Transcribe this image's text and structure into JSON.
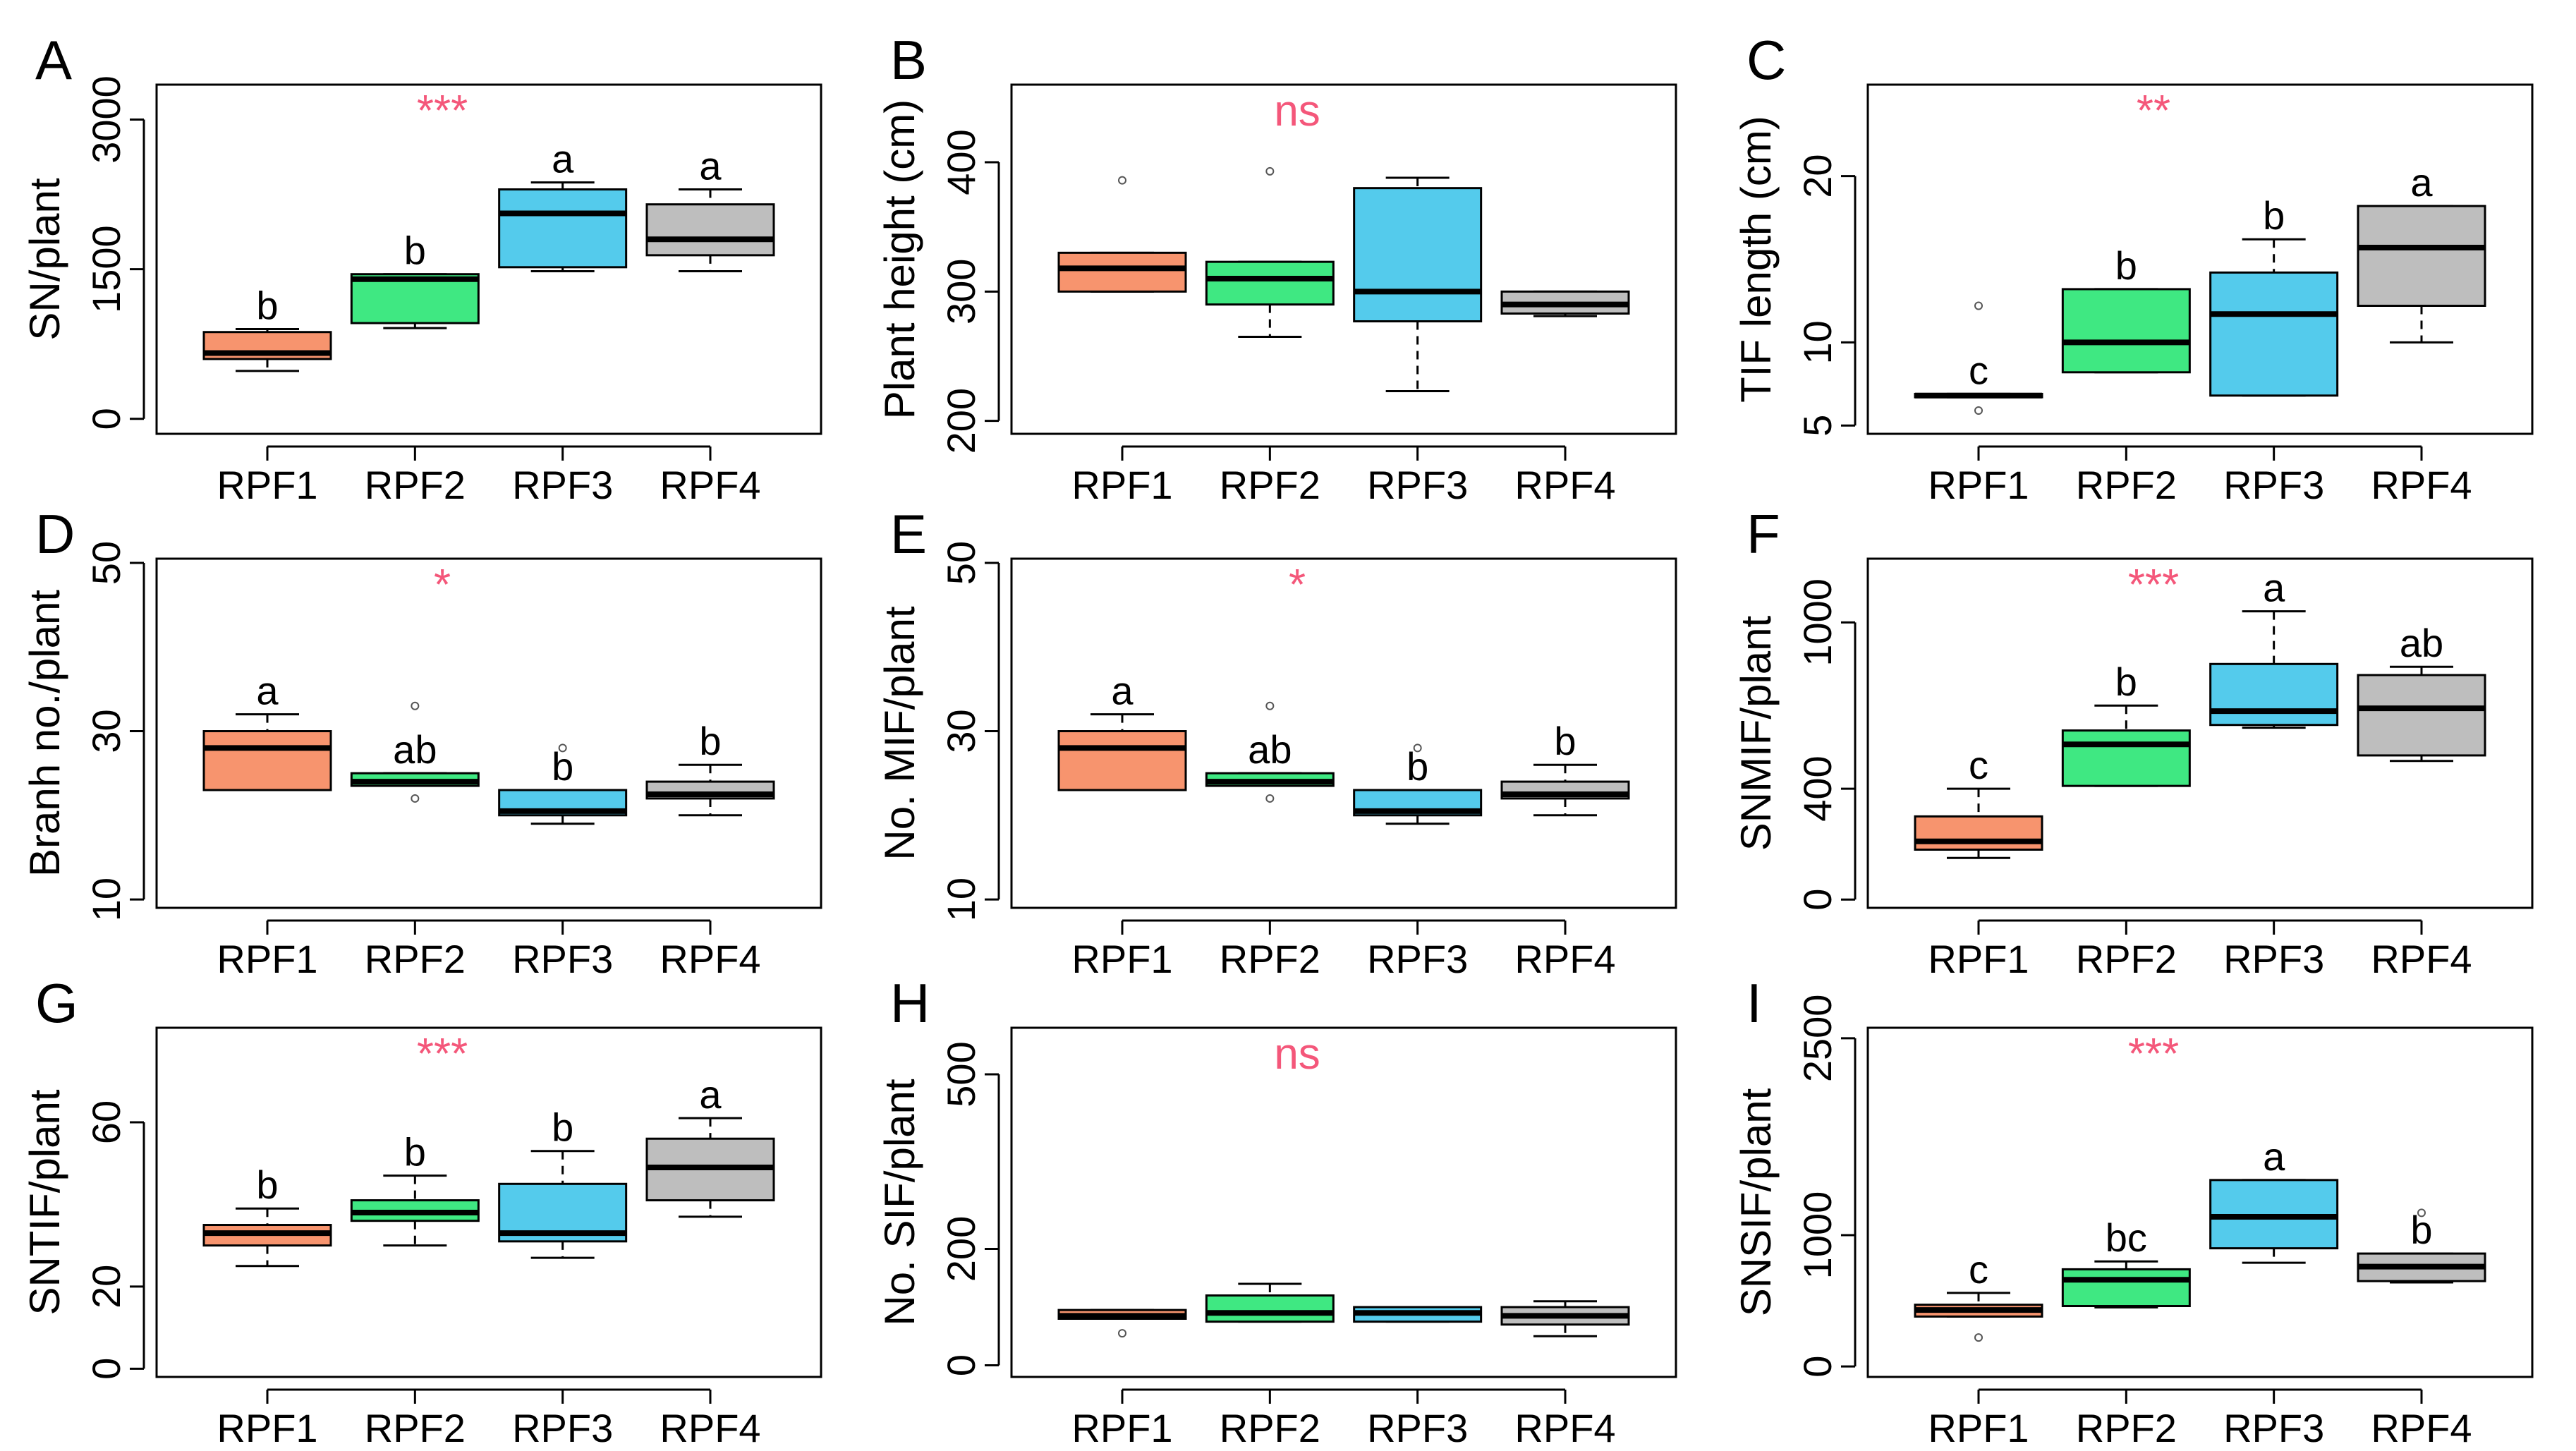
{
  "categories": [
    "RPF1",
    "RPF2",
    "RPF3",
    "RPF4"
  ],
  "colors": {
    "RPF1": "#f7946e",
    "RPF2": "#3fe882",
    "RPF3": "#54cbec",
    "RPF4": "#bebebe",
    "significance": "#f4577a",
    "axis": "#000000"
  },
  "chart_data": [
    {
      "panel": "A",
      "type": "boxplot",
      "ylabel": "SN/plant",
      "ylim": [
        -150,
        3350
      ],
      "yticks": [
        0,
        1500,
        3000
      ],
      "significance": "***",
      "boxes": [
        {
          "category": "RPF1",
          "min": 480,
          "q1": 600,
          "median": 660,
          "q3": 870,
          "max": 900,
          "outliers": [],
          "letter": "b"
        },
        {
          "category": "RPF2",
          "min": 910,
          "q1": 960,
          "median": 1400,
          "q3": 1450,
          "max": 1450,
          "outliers": [],
          "letter": "b"
        },
        {
          "category": "RPF3",
          "min": 1480,
          "q1": 1520,
          "median": 2060,
          "q3": 2300,
          "max": 2370,
          "outliers": [],
          "letter": "a"
        },
        {
          "category": "RPF4",
          "min": 1480,
          "q1": 1640,
          "median": 1800,
          "q3": 2150,
          "max": 2300,
          "outliers": [],
          "letter": "a"
        }
      ]
    },
    {
      "panel": "B",
      "type": "boxplot",
      "ylabel": "Plant height (cm)",
      "ylim": [
        190,
        460
      ],
      "yticks": [
        200,
        300,
        400
      ],
      "significance": "ns",
      "boxes": [
        {
          "category": "RPF1",
          "min": 300,
          "q1": 300,
          "median": 318,
          "q3": 330,
          "max": 330,
          "outliers": [
            386
          ],
          "letter": ""
        },
        {
          "category": "RPF2",
          "min": 265,
          "q1": 290,
          "median": 310,
          "q3": 323,
          "max": 323,
          "outliers": [
            393
          ],
          "letter": ""
        },
        {
          "category": "RPF3",
          "min": 223,
          "q1": 277,
          "median": 300,
          "q3": 380,
          "max": 388,
          "outliers": [],
          "letter": ""
        },
        {
          "category": "RPF4",
          "min": 281,
          "q1": 283,
          "median": 290,
          "q3": 300,
          "max": 300,
          "outliers": [],
          "letter": ""
        }
      ]
    },
    {
      "panel": "C",
      "type": "boxplot",
      "ylabel": "TIF length (cm)",
      "ylim": [
        4.5,
        25.5
      ],
      "yticks": [
        5,
        10,
        20
      ],
      "significance": "**",
      "boxes": [
        {
          "category": "RPF1",
          "min": 6.7,
          "q1": 6.7,
          "median": 6.8,
          "q3": 6.9,
          "max": 6.9,
          "outliers": [
            5.9,
            12.2
          ],
          "letter": "c"
        },
        {
          "category": "RPF2",
          "min": 8.2,
          "q1": 8.2,
          "median": 10.0,
          "q3": 13.2,
          "max": 13.2,
          "outliers": [],
          "letter": "b"
        },
        {
          "category": "RPF3",
          "min": 6.8,
          "q1": 6.8,
          "median": 11.7,
          "q3": 14.2,
          "max": 16.2,
          "outliers": [],
          "letter": "b"
        },
        {
          "category": "RPF4",
          "min": 10.0,
          "q1": 12.2,
          "median": 15.7,
          "q3": 18.2,
          "max": 18.2,
          "outliers": [],
          "letter": "a"
        }
      ]
    },
    {
      "panel": "D",
      "type": "boxplot",
      "ylabel": "Branh no./plant",
      "ylim": [
        9,
        50.5
      ],
      "yticks": [
        10,
        30,
        50
      ],
      "significance": "*",
      "boxes": [
        {
          "category": "RPF1",
          "min": 23,
          "q1": 23,
          "median": 28,
          "q3": 30,
          "max": 32,
          "outliers": [],
          "letter": "a"
        },
        {
          "category": "RPF2",
          "min": 23.5,
          "q1": 23.5,
          "median": 24,
          "q3": 25,
          "max": 25,
          "outliers": [
            22,
            33
          ],
          "letter": "ab"
        },
        {
          "category": "RPF3",
          "min": 19,
          "q1": 20,
          "median": 20.5,
          "q3": 23,
          "max": 23,
          "outliers": [
            28
          ],
          "letter": "b"
        },
        {
          "category": "RPF4",
          "min": 20,
          "q1": 22,
          "median": 22.5,
          "q3": 24,
          "max": 26,
          "outliers": [],
          "letter": "b"
        }
      ]
    },
    {
      "panel": "E",
      "type": "boxplot",
      "ylabel": "No. MIF/plant",
      "ylim": [
        9,
        50.5
      ],
      "yticks": [
        10,
        30,
        50
      ],
      "significance": "*",
      "boxes": [
        {
          "category": "RPF1",
          "min": 23,
          "q1": 23,
          "median": 28,
          "q3": 30,
          "max": 32,
          "outliers": [],
          "letter": "a"
        },
        {
          "category": "RPF2",
          "min": 23.5,
          "q1": 23.5,
          "median": 24,
          "q3": 25,
          "max": 25,
          "outliers": [
            22,
            33
          ],
          "letter": "ab"
        },
        {
          "category": "RPF3",
          "min": 19,
          "q1": 20,
          "median": 20.5,
          "q3": 23,
          "max": 23,
          "outliers": [
            28
          ],
          "letter": "b"
        },
        {
          "category": "RPF4",
          "min": 20,
          "q1": 22,
          "median": 22.5,
          "q3": 24,
          "max": 26,
          "outliers": [],
          "letter": "b"
        }
      ]
    },
    {
      "panel": "F",
      "type": "boxplot",
      "ylabel": "SNMIF/plant",
      "ylim": [
        -30,
        1230
      ],
      "yticks": [
        0,
        400,
        1000
      ],
      "significance": "***",
      "boxes": [
        {
          "category": "RPF1",
          "min": 150,
          "q1": 180,
          "median": 210,
          "q3": 300,
          "max": 400,
          "outliers": [],
          "letter": "c"
        },
        {
          "category": "RPF2",
          "min": 410,
          "q1": 410,
          "median": 560,
          "q3": 610,
          "max": 700,
          "outliers": [],
          "letter": "b"
        },
        {
          "category": "RPF3",
          "min": 620,
          "q1": 630,
          "median": 680,
          "q3": 850,
          "max": 1040,
          "outliers": [],
          "letter": "a"
        },
        {
          "category": "RPF4",
          "min": 500,
          "q1": 520,
          "median": 690,
          "q3": 810,
          "max": 840,
          "outliers": [],
          "letter": "ab"
        }
      ]
    },
    {
      "panel": "G",
      "type": "boxplot",
      "ylabel": "SNTIF/plant",
      "ylim": [
        -2,
        83
      ],
      "yticks": [
        0,
        20,
        60
      ],
      "significance": "***",
      "boxes": [
        {
          "category": "RPF1",
          "min": 25,
          "q1": 30,
          "median": 33,
          "q3": 35,
          "max": 39,
          "outliers": [],
          "letter": "b"
        },
        {
          "category": "RPF2",
          "min": 30,
          "q1": 36,
          "median": 38,
          "q3": 41,
          "max": 47,
          "outliers": [],
          "letter": "b"
        },
        {
          "category": "RPF3",
          "min": 27,
          "q1": 31,
          "median": 33,
          "q3": 45,
          "max": 53,
          "outliers": [],
          "letter": "b"
        },
        {
          "category": "RPF4",
          "min": 37,
          "q1": 41,
          "median": 49,
          "q3": 56,
          "max": 61,
          "outliers": [],
          "letter": "a"
        }
      ]
    },
    {
      "panel": "H",
      "type": "boxplot",
      "ylabel": "No. SIF/plant",
      "ylim": [
        -20,
        580
      ],
      "yticks": [
        0,
        200,
        500
      ],
      "significance": "ns",
      "boxes": [
        {
          "category": "RPF1",
          "min": 80,
          "q1": 80,
          "median": 85,
          "q3": 95,
          "max": 95,
          "outliers": [
            55
          ],
          "letter": ""
        },
        {
          "category": "RPF2",
          "min": 75,
          "q1": 75,
          "median": 90,
          "q3": 120,
          "max": 140,
          "outliers": [],
          "letter": ""
        },
        {
          "category": "RPF3",
          "min": 75,
          "q1": 75,
          "median": 90,
          "q3": 100,
          "max": 100,
          "outliers": [],
          "letter": ""
        },
        {
          "category": "RPF4",
          "min": 50,
          "q1": 70,
          "median": 85,
          "q3": 100,
          "max": 110,
          "outliers": [],
          "letter": ""
        }
      ]
    },
    {
      "panel": "I",
      "type": "boxplot",
      "ylabel": "SNSIF/plant",
      "ylim": [
        -80,
        2580
      ],
      "yticks": [
        0,
        1000,
        2500
      ],
      "significance": "***",
      "boxes": [
        {
          "category": "RPF1",
          "min": 380,
          "q1": 380,
          "median": 430,
          "q3": 470,
          "max": 560,
          "outliers": [
            220
          ],
          "letter": "c"
        },
        {
          "category": "RPF2",
          "min": 450,
          "q1": 460,
          "median": 660,
          "q3": 740,
          "max": 800,
          "outliers": [],
          "letter": "bc"
        },
        {
          "category": "RPF3",
          "min": 790,
          "q1": 900,
          "median": 1140,
          "q3": 1420,
          "max": 1420,
          "outliers": [],
          "letter": "a"
        },
        {
          "category": "RPF4",
          "min": 640,
          "q1": 650,
          "median": 760,
          "q3": 860,
          "max": 860,
          "outliers": [
            1170
          ],
          "letter": "b"
        }
      ]
    }
  ]
}
